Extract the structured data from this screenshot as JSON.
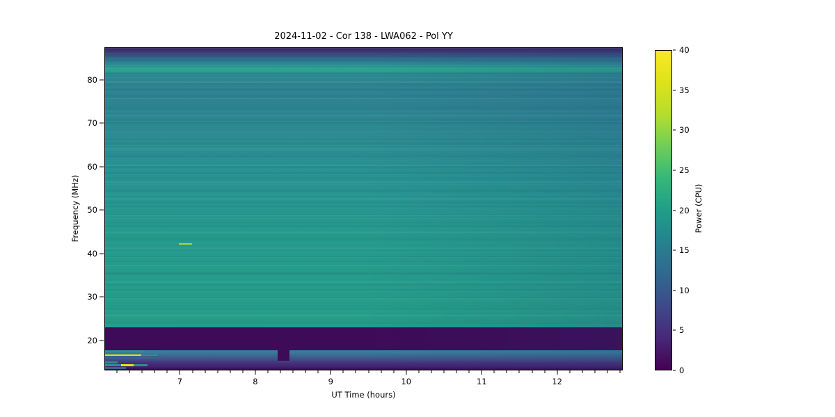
{
  "figure": {
    "title": "2024-11-02 - Cor 138 - LWA062 - Pol YY",
    "background_color": "#ffffff"
  },
  "chart_data": {
    "type": "heatmap",
    "title": "2024-11-02 - Cor 138 - LWA062 - Pol YY",
    "xlabel": "UT Time (hours)",
    "ylabel": "Frequency (MHz)",
    "colorbar_label": "Power (CPU)",
    "xlim": [
      6.0,
      12.87
    ],
    "ylim": [
      13.1,
      87.5
    ],
    "x_major_ticks": [
      7,
      8,
      9,
      10,
      11,
      12
    ],
    "x_minor_step_hours": 0.16667,
    "y_major_ticks": [
      20,
      30,
      40,
      50,
      60,
      70,
      80
    ],
    "grid": false,
    "colorbar": {
      "vmin": 0,
      "vmax": 40,
      "ticks": [
        0,
        5,
        10,
        15,
        20,
        25,
        30,
        35,
        40
      ],
      "colormap": "viridis",
      "stops": [
        {
          "value": 0,
          "color": "#440154"
        },
        {
          "value": 4,
          "color": "#482878"
        },
        {
          "value": 8,
          "color": "#3e4a89"
        },
        {
          "value": 12,
          "color": "#31688e"
        },
        {
          "value": 16,
          "color": "#26828e"
        },
        {
          "value": 20,
          "color": "#1f9e89"
        },
        {
          "value": 24,
          "color": "#35b779"
        },
        {
          "value": 28,
          "color": "#6ece58"
        },
        {
          "value": 32,
          "color": "#b5de2b"
        },
        {
          "value": 36,
          "color": "#dde318"
        },
        {
          "value": 40,
          "color": "#fde725"
        }
      ]
    },
    "frequency_profile": [
      {
        "f": 13.1,
        "color": "#340b54"
      },
      {
        "f": 13.8,
        "color": "#432170"
      },
      {
        "f": 14.6,
        "color": "#44307a"
      },
      {
        "f": 15.5,
        "color": "#415086"
      },
      {
        "f": 16.5,
        "color": "#3b6c94"
      },
      {
        "f": 17.2,
        "color": "#3a7d99"
      },
      {
        "f": 17.62,
        "color": "#3a7d99"
      },
      {
        "f": 17.62,
        "color": "#3e0b58"
      },
      {
        "f": 22.9,
        "color": "#3e0b58"
      },
      {
        "f": 22.9,
        "color": "#249d8a"
      },
      {
        "f": 26.0,
        "color": "#259d89"
      },
      {
        "f": 34.0,
        "color": "#249b8b"
      },
      {
        "f": 44.0,
        "color": "#259a8c"
      },
      {
        "f": 52.0,
        "color": "#279690"
      },
      {
        "f": 58.0,
        "color": "#289292"
      },
      {
        "f": 66.0,
        "color": "#2b8c91"
      },
      {
        "f": 73.0,
        "color": "#2d8491"
      },
      {
        "f": 78.0,
        "color": "#2d8291"
      },
      {
        "f": 81.5,
        "color": "#2c8a90"
      },
      {
        "f": 82.1,
        "color": "#2aa490"
      },
      {
        "f": 82.8,
        "color": "#2aa490"
      },
      {
        "f": 83.3,
        "color": "#289090"
      },
      {
        "f": 84.3,
        "color": "#2d7f90"
      },
      {
        "f": 85.3,
        "color": "#33638a"
      },
      {
        "f": 86.2,
        "color": "#3a4579"
      },
      {
        "f": 87.0,
        "color": "#3b2e6b"
      },
      {
        "f": 87.5,
        "color": "#33205f"
      }
    ],
    "features": [
      {
        "name": "rfi-teal-stripe-17mhz",
        "t0": 6.0,
        "t1": 6.51,
        "f0": 17.1,
        "f1": 17.62,
        "color": "#318f90"
      },
      {
        "name": "rfi-teal-stripe-17mhz-tail",
        "t0": 6.51,
        "t1": 6.74,
        "f0": 17.1,
        "f1": 17.62,
        "color": "#37809a"
      },
      {
        "name": "rfi-yellow-line-16mhz",
        "t0": 6.0,
        "t1": 6.48,
        "f0": 16.25,
        "f1": 16.62,
        "color": "#e0e21b"
      },
      {
        "name": "rfi-yellow-line-16mhz-tail",
        "t0": 6.48,
        "t1": 6.7,
        "f0": 16.25,
        "f1": 16.62,
        "color": "#2f8f8d"
      },
      {
        "name": "rfi-blue-stripe-16mhz",
        "t0": 6.0,
        "t1": 6.74,
        "f0": 15.7,
        "f1": 16.25,
        "color": "#3d5f8c"
      },
      {
        "name": "rfi-teal-stripe-15mhz",
        "t0": 6.0,
        "t1": 6.17,
        "f0": 14.55,
        "f1": 15.05,
        "color": "#318a8e"
      },
      {
        "name": "rfi-teal-lead-14mhz",
        "t0": 6.0,
        "t1": 6.21,
        "f0": 13.95,
        "f1": 14.42,
        "color": "#2f8e8d"
      },
      {
        "name": "rfi-yellow-segment-14mhz",
        "t0": 6.21,
        "t1": 6.38,
        "f0": 13.95,
        "f1": 14.42,
        "color": "#e0e21b"
      },
      {
        "name": "rfi-teal-tail-14mhz",
        "t0": 6.38,
        "t1": 6.56,
        "f0": 13.95,
        "f1": 14.42,
        "color": "#2f8e8d"
      },
      {
        "name": "rfi-blue-stripe-13mhz",
        "t0": 6.0,
        "t1": 6.28,
        "f0": 13.3,
        "f1": 13.75,
        "color": "#3e5e8a"
      },
      {
        "name": "data-notch-8p3h",
        "t0": 8.29,
        "t1": 8.45,
        "f0": 15.2,
        "f1": 17.65,
        "color": "#3e0b58"
      },
      {
        "name": "burst-42mhz",
        "t0": 6.98,
        "t1": 7.16,
        "f0": 41.95,
        "f1": 42.35,
        "color": "#9edc3a"
      }
    ]
  }
}
